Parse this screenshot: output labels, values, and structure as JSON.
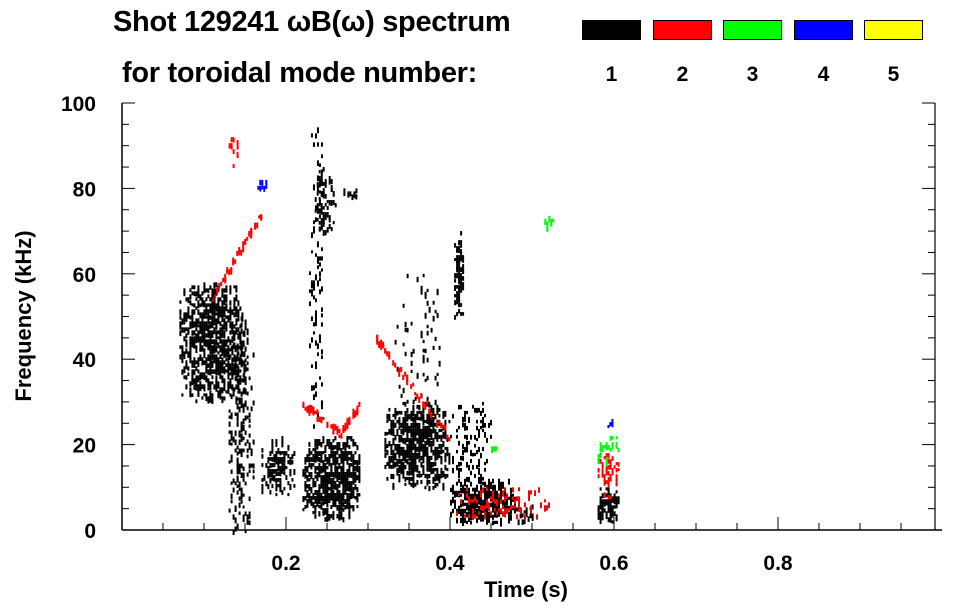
{
  "chart_data": {
    "type": "heatmap",
    "title": "Shot 129241 ωB(ω) spectrum",
    "subtitle": "for toroidal mode number:",
    "xlabel": "Time (s)",
    "ylabel": "Frequency (kHz)",
    "xlim": [
      0,
      1.0
    ],
    "ylim": [
      0,
      100
    ],
    "xticks": [
      0.2,
      0.4,
      0.6,
      0.8
    ],
    "xtick_labels": [
      "0.2",
      "0.4",
      "0.6",
      "0.8"
    ],
    "yticks": [
      0,
      20,
      40,
      60,
      80,
      100
    ],
    "ytick_labels": [
      "0",
      "20",
      "40",
      "60",
      "80",
      "100"
    ],
    "legend": [
      {
        "mode": "1",
        "color": "#000000"
      },
      {
        "mode": "2",
        "color": "#ff0000"
      },
      {
        "mode": "3",
        "color": "#00ff00"
      },
      {
        "mode": "4",
        "color": "#0000ff"
      },
      {
        "mode": "5",
        "color": "#ffff00"
      }
    ],
    "features": [
      {
        "mode": 1,
        "t": [
          0.07,
          0.15
        ],
        "f": [
          30,
          58
        ],
        "density": 0.75
      },
      {
        "mode": 1,
        "t": [
          0.13,
          0.16
        ],
        "f": [
          0,
          50
        ],
        "density": 0.35
      },
      {
        "mode": 1,
        "t": [
          0.17,
          0.21
        ],
        "f": [
          8,
          22
        ],
        "density": 0.55
      },
      {
        "mode": 1,
        "t": [
          0.22,
          0.29
        ],
        "f": [
          3,
          22
        ],
        "density": 0.85
      },
      {
        "mode": 1,
        "t": [
          0.228,
          0.245
        ],
        "f": [
          22,
          95
        ],
        "density": 0.2
      },
      {
        "mode": 1,
        "t": [
          0.235,
          0.26
        ],
        "f": [
          70,
          85
        ],
        "density": 0.45
      },
      {
        "mode": 1,
        "t": [
          0.27,
          0.285
        ],
        "f": [
          78,
          80
        ],
        "density": 0.7
      },
      {
        "mode": 1,
        "t": [
          0.32,
          0.4
        ],
        "f": [
          10,
          30
        ],
        "density": 0.8
      },
      {
        "mode": 1,
        "t": [
          0.33,
          0.39
        ],
        "f": [
          30,
          60
        ],
        "density": 0.08
      },
      {
        "mode": 1,
        "t": [
          0.4,
          0.45
        ],
        "f": [
          12,
          30
        ],
        "density": 0.3
      },
      {
        "mode": 1,
        "t": [
          0.405,
          0.415
        ],
        "f": [
          50,
          70
        ],
        "density": 0.85
      },
      {
        "mode": 1,
        "t": [
          0.4,
          0.48
        ],
        "f": [
          2,
          12
        ],
        "density": 0.85
      },
      {
        "mode": 1,
        "t": [
          0.48,
          0.5
        ],
        "f": [
          2,
          6
        ],
        "density": 0.4
      },
      {
        "mode": 1,
        "t": [
          0.58,
          0.605
        ],
        "f": [
          2,
          10
        ],
        "density": 0.8
      },
      {
        "mode": 2,
        "t": [
          0.11,
          0.17
        ],
        "f": [
          55,
          75
        ],
        "density": 0.3,
        "chirp": [
          [
            0.11,
            55
          ],
          [
            0.17,
            75
          ]
        ]
      },
      {
        "mode": 2,
        "t": [
          0.22,
          0.29
        ],
        "f": [
          22,
          32
        ],
        "density": 0.4,
        "chirp": [
          [
            0.22,
            30
          ],
          [
            0.265,
            23
          ],
          [
            0.29,
            30
          ]
        ]
      },
      {
        "mode": 2,
        "t": [
          0.31,
          0.4
        ],
        "f": [
          22,
          45
        ],
        "density": 0.45,
        "chirp": [
          [
            0.31,
            45
          ],
          [
            0.4,
            22
          ]
        ]
      },
      {
        "mode": 2,
        "t": [
          0.4,
          0.52
        ],
        "f": [
          3,
          10
        ],
        "density": 0.25
      },
      {
        "mode": 2,
        "t": [
          0.58,
          0.605
        ],
        "f": [
          8,
          18
        ],
        "density": 0.5
      },
      {
        "mode": 2,
        "t": [
          0.13,
          0.14
        ],
        "f": [
          85,
          92
        ],
        "density": 0.3
      },
      {
        "mode": 3,
        "t": [
          0.515,
          0.525
        ],
        "f": [
          70,
          75
        ],
        "density": 0.5
      },
      {
        "mode": 3,
        "t": [
          0.58,
          0.605
        ],
        "f": [
          15,
          22
        ],
        "density": 0.45
      },
      {
        "mode": 3,
        "t": [
          0.45,
          0.46
        ],
        "f": [
          18,
          21
        ],
        "density": 0.4
      },
      {
        "mode": 4,
        "t": [
          0.165,
          0.175
        ],
        "f": [
          80,
          82
        ],
        "density": 0.7
      },
      {
        "mode": 4,
        "t": [
          0.592,
          0.598
        ],
        "f": [
          24,
          26
        ],
        "density": 0.7
      }
    ]
  }
}
